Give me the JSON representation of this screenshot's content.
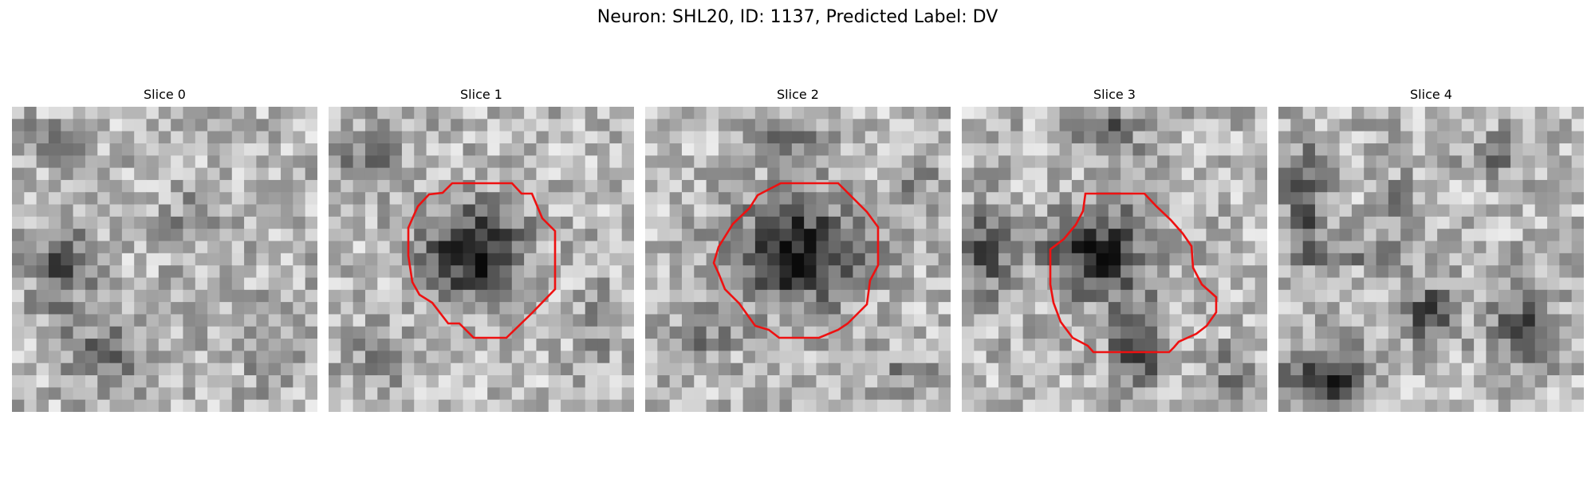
{
  "figure": {
    "title": "Neuron: SHL20, ID: 1137, Predicted Label: DV"
  },
  "panels": [
    {
      "title": "Slice 0",
      "has_contour": false,
      "contour_color": "#ee1111"
    },
    {
      "title": "Slice 1",
      "has_contour": true,
      "contour_color": "#ee1111"
    },
    {
      "title": "Slice 2",
      "has_contour": true,
      "contour_color": "#ee1111"
    },
    {
      "title": "Slice 3",
      "has_contour": true,
      "contour_color": "#ee1111"
    },
    {
      "title": "Slice 4",
      "has_contour": false,
      "contour_color": "#ee1111"
    }
  ]
}
